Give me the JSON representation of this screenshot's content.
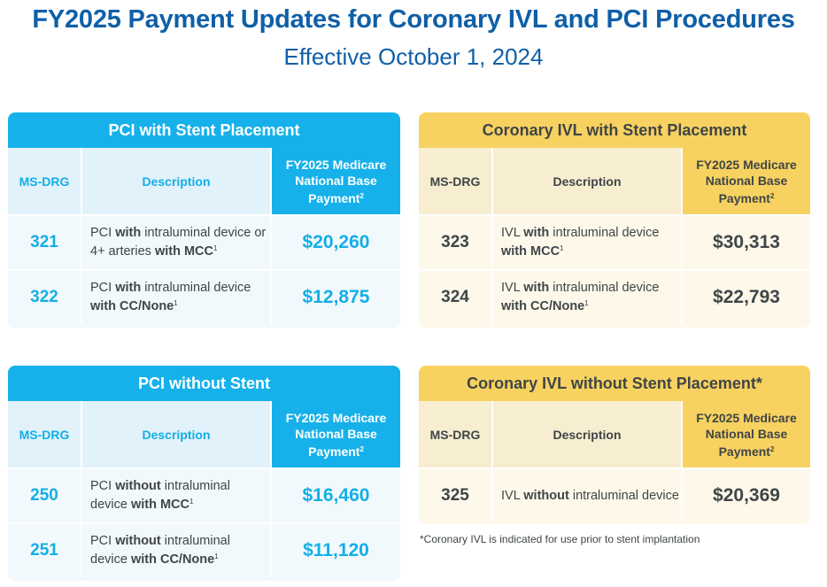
{
  "title": "FY2025 Payment Updates for Coronary IVL and PCI Procedures",
  "subtitle": "Effective October 1, 2024",
  "columns": {
    "drg": "MS-DRG",
    "description": "Description",
    "payment": "FY2025 Medicare National Base Payment",
    "payment_sup": "2"
  },
  "colors": {
    "title": "#0f5fa8",
    "pci_accent": "#16b1ea",
    "ivl_accent": "#f8d260",
    "text": "#3f4548"
  },
  "tables": {
    "pci_stent": {
      "title": "PCI with Stent Placement",
      "rows": [
        {
          "drg": "321",
          "payment": "$20,260"
        },
        {
          "drg": "322",
          "payment": "$12,875"
        }
      ]
    },
    "ivl_stent": {
      "title": "Coronary IVL with Stent Placement",
      "rows": [
        {
          "drg": "323",
          "payment": "$30,313"
        },
        {
          "drg": "324",
          "payment": "$22,793"
        }
      ]
    },
    "pci_no_stent": {
      "title": "PCI without Stent",
      "rows": [
        {
          "drg": "250",
          "payment": "$16,460"
        },
        {
          "drg": "251",
          "payment": "$11,120"
        }
      ]
    },
    "ivl_no_stent": {
      "title": "Coronary IVL without Stent Placement*",
      "rows": [
        {
          "drg": "325",
          "payment": "$20,369"
        }
      ]
    }
  },
  "descriptions": {
    "d321": [
      "PCI ",
      "with",
      " intraluminal device or 4+ arteries ",
      "with MCC",
      "1"
    ],
    "d322": [
      "PCI ",
      "with",
      " intraluminal device ",
      "with CC/None",
      "1"
    ],
    "d323": [
      "IVL ",
      "with",
      " intraluminal device ",
      "with MCC",
      "1"
    ],
    "d324": [
      "IVL ",
      "with",
      " intraluminal device ",
      "with CC/None",
      "1"
    ],
    "d250": [
      "PCI ",
      "without",
      " intraluminal device ",
      "with MCC",
      "1"
    ],
    "d251": [
      "PCI ",
      "without",
      " intraluminal device ",
      "with CC/None",
      "1"
    ],
    "d325": [
      "IVL ",
      "without",
      " intraluminal device"
    ]
  },
  "footnote": "*Coronary IVL is indicated for use prior to stent implantation"
}
